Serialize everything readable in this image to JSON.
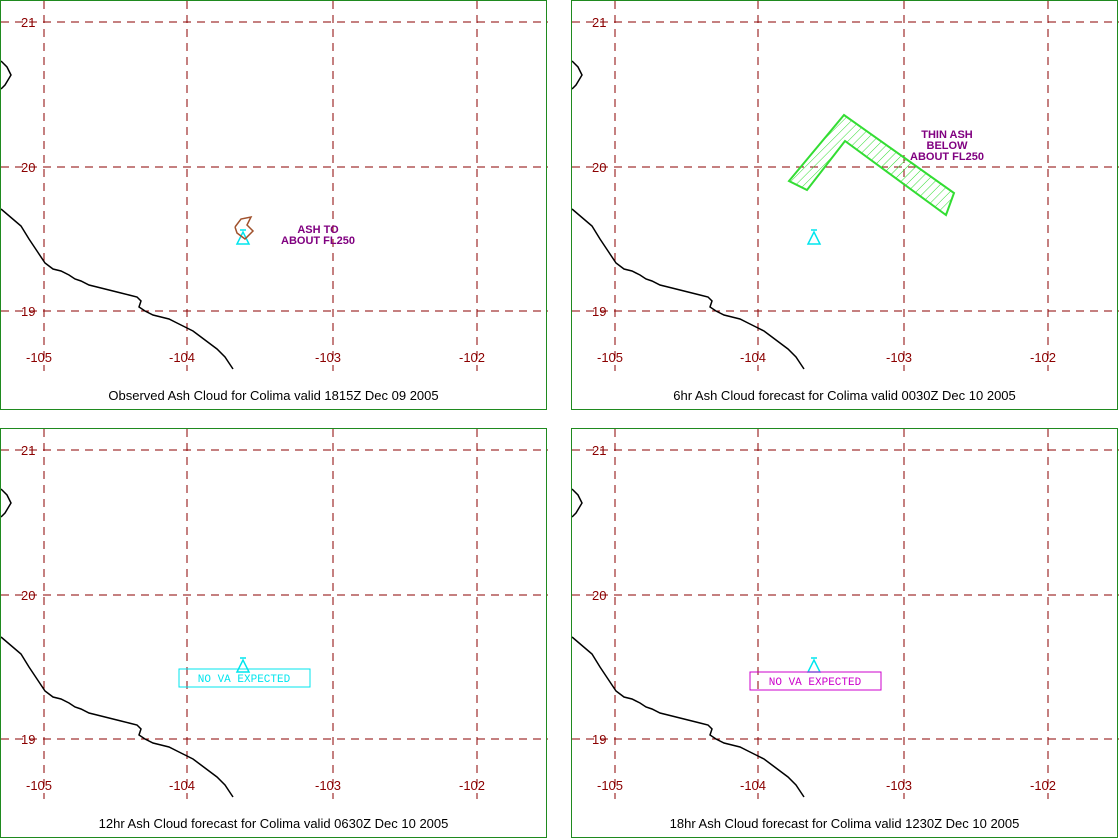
{
  "colors": {
    "panel_border": "#1f8a1f",
    "grid": "#8b0000",
    "tick_label": "#8b0000",
    "coastline": "#000000",
    "volcano_icon": "#00e5ee",
    "label_text": "#800080",
    "observed_ash": "#a0522d",
    "forecast_ash": "#33dd33",
    "nova_cyan": "#00e5ee",
    "nova_magenta": "#cc00cc"
  },
  "axis": {
    "lon_ticks": [
      "-105",
      "-104",
      "-103",
      "-102"
    ],
    "lat_ticks": [
      "21",
      "20",
      "19"
    ]
  },
  "panels": [
    {
      "caption": "Observed Ash Cloud for Colima valid 1815Z Dec 09 2005",
      "label_lines": [
        "ASH TO",
        "ABOUT FL250"
      ],
      "label_kind": "observed",
      "volcano_icon": "volcano-triangle-icon"
    },
    {
      "caption": "6hr Ash Cloud forecast for Colima valid 0030Z Dec 10 2005",
      "label_lines": [
        "THIN ASH",
        "BELOW",
        "ABOUT FL250"
      ],
      "label_kind": "forecast",
      "volcano_icon": "volcano-triangle-icon"
    },
    {
      "caption": "12hr Ash Cloud forecast for Colima valid 0630Z Dec 10 2005",
      "label_lines": [
        "NO VA EXPECTED"
      ],
      "label_kind": "nova",
      "label_color": "#00e5ee",
      "volcano_icon": "volcano-triangle-icon"
    },
    {
      "caption": "18hr Ash Cloud forecast for Colima valid 1230Z Dec 10 2005",
      "label_lines": [
        "NO VA EXPECTED"
      ],
      "label_kind": "nova",
      "label_color": "#cc00cc",
      "volcano_icon": "volcano-triangle-icon"
    }
  ]
}
